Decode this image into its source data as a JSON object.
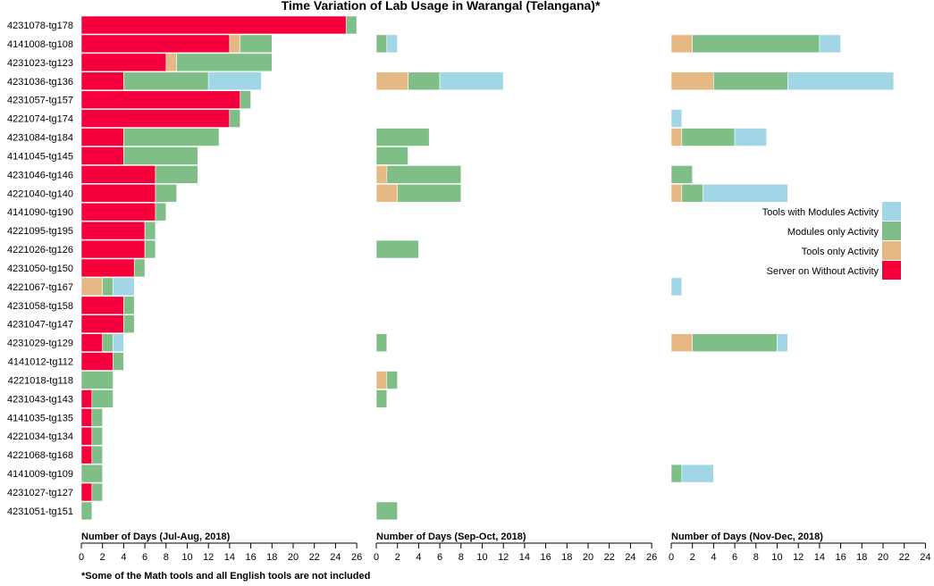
{
  "chart_data": {
    "type": "bar",
    "orientation": "horizontal",
    "stacked": true,
    "title": "Time Variation of Lab Usage in Warangal (Telangana)*",
    "footnote": "*Some of the Math tools and all English tools are not included",
    "categories": [
      "4231078-tg178",
      "4141008-tg108",
      "4231023-tg123",
      "4231036-tg136",
      "4231057-tg157",
      "4221074-tg174",
      "4231084-tg184",
      "4141045-tg145",
      "4231046-tg146",
      "4221040-tg140",
      "4141090-tg190",
      "4221095-tg195",
      "4221026-tg126",
      "4231050-tg150",
      "4221067-tg167",
      "4231058-tg158",
      "4231047-tg147",
      "4231029-tg129",
      "4141012-tg112",
      "4221018-tg118",
      "4231043-tg143",
      "4141035-tg135",
      "4221034-tg134",
      "4221068-tg168",
      "4141009-tg109",
      "4231027-tg127",
      "4231051-tg151"
    ],
    "series_names": [
      "Server on Without Activity",
      "Tools only Activity",
      "Modules only Activity",
      "Tools with Modules Activity"
    ],
    "colors": {
      "Server on Without Activity": "#f5003c",
      "Tools only Activity": "#e6b883",
      "Modules only Activity": "#7fbf87",
      "Tools with Modules Activity": "#a1d6e6"
    },
    "legend_labels": [
      "Tools with Modules Activity",
      "Modules only Activity",
      "Tools only Activity",
      "Server on Without Activity"
    ],
    "legend_position": "right",
    "grid": false,
    "panels": [
      {
        "xlabel": "Number of Days (Jul-Aug, 2018)",
        "xlim": [
          0,
          26
        ],
        "ticks": [
          0,
          2,
          4,
          6,
          8,
          10,
          12,
          14,
          16,
          18,
          20,
          22,
          24,
          26
        ],
        "values": [
          [
            25,
            0,
            1,
            0
          ],
          [
            14,
            1,
            3,
            0
          ],
          [
            8,
            1,
            9,
            0
          ],
          [
            4,
            0,
            8,
            5
          ],
          [
            15,
            0,
            1,
            0
          ],
          [
            14,
            0,
            1,
            0
          ],
          [
            4,
            0,
            9,
            0
          ],
          [
            4,
            0,
            7,
            0
          ],
          [
            7,
            0,
            4,
            0
          ],
          [
            7,
            0,
            2,
            0
          ],
          [
            7,
            0,
            1,
            0
          ],
          [
            6,
            0,
            1,
            0
          ],
          [
            6,
            0,
            1,
            0
          ],
          [
            5,
            0,
            1,
            0
          ],
          [
            0,
            2,
            1,
            2
          ],
          [
            4,
            0,
            1,
            0
          ],
          [
            4,
            0,
            1,
            0
          ],
          [
            2,
            0,
            1,
            1
          ],
          [
            3,
            0,
            1,
            0
          ],
          [
            0,
            0,
            3,
            0
          ],
          [
            1,
            0,
            2,
            0
          ],
          [
            1,
            0,
            1,
            0
          ],
          [
            1,
            0,
            1,
            0
          ],
          [
            1,
            0,
            1,
            0
          ],
          [
            0,
            0,
            2,
            0
          ],
          [
            1,
            0,
            1,
            0
          ],
          [
            0,
            0,
            1,
            0
          ]
        ]
      },
      {
        "xlabel": "Number of Days (Sep-Oct, 2018)",
        "xlim": [
          0,
          26
        ],
        "ticks": [
          0,
          2,
          4,
          6,
          8,
          10,
          12,
          14,
          16,
          18,
          20,
          22,
          24,
          26
        ],
        "values": [
          [
            0,
            0,
            0,
            0
          ],
          [
            0,
            0,
            1,
            1
          ],
          [
            0,
            0,
            0,
            0
          ],
          [
            0,
            3,
            3,
            6
          ],
          [
            0,
            0,
            0,
            0
          ],
          [
            0,
            0,
            0,
            0
          ],
          [
            0,
            0,
            5,
            0
          ],
          [
            0,
            0,
            3,
            0
          ],
          [
            0,
            1,
            7,
            0
          ],
          [
            0,
            2,
            6,
            0
          ],
          [
            0,
            0,
            0,
            0
          ],
          [
            0,
            0,
            0,
            0
          ],
          [
            0,
            0,
            4,
            0
          ],
          [
            0,
            0,
            0,
            0
          ],
          [
            0,
            0,
            0,
            0
          ],
          [
            0,
            0,
            0,
            0
          ],
          [
            0,
            0,
            0,
            0
          ],
          [
            0,
            0,
            1,
            0
          ],
          [
            0,
            0,
            0,
            0
          ],
          [
            0,
            1,
            1,
            0
          ],
          [
            0,
            0,
            1,
            0
          ],
          [
            0,
            0,
            0,
            0
          ],
          [
            0,
            0,
            0,
            0
          ],
          [
            0,
            0,
            0,
            0
          ],
          [
            0,
            0,
            0,
            0
          ],
          [
            0,
            0,
            0,
            0
          ],
          [
            0,
            0,
            2,
            0
          ]
        ]
      },
      {
        "xlabel": "Number of Days (Nov-Dec, 2018)",
        "xlim": [
          0,
          24
        ],
        "ticks": [
          0,
          2,
          4,
          6,
          8,
          10,
          12,
          14,
          16,
          18,
          20,
          22,
          24
        ],
        "values": [
          [
            0,
            0,
            0,
            0
          ],
          [
            0,
            2,
            12,
            2
          ],
          [
            0,
            0,
            0,
            0
          ],
          [
            0,
            4,
            7,
            10
          ],
          [
            0,
            0,
            0,
            0
          ],
          [
            0,
            0,
            0,
            1
          ],
          [
            0,
            1,
            5,
            3
          ],
          [
            0,
            0,
            0,
            0
          ],
          [
            0,
            0,
            2,
            0
          ],
          [
            0,
            1,
            2,
            8
          ],
          [
            0,
            0,
            0,
            0
          ],
          [
            0,
            0,
            0,
            0
          ],
          [
            0,
            0,
            0,
            0
          ],
          [
            0,
            0,
            0,
            0
          ],
          [
            0,
            0,
            0,
            1
          ],
          [
            0,
            0,
            0,
            0
          ],
          [
            0,
            0,
            0,
            0
          ],
          [
            0,
            2,
            8,
            1
          ],
          [
            0,
            0,
            0,
            0
          ],
          [
            0,
            0,
            0,
            0
          ],
          [
            0,
            0,
            0,
            0
          ],
          [
            0,
            0,
            0,
            0
          ],
          [
            0,
            0,
            0,
            0
          ],
          [
            0,
            0,
            0,
            0
          ],
          [
            0,
            0,
            1,
            3
          ],
          [
            0,
            0,
            0,
            0
          ],
          [
            0,
            0,
            0,
            0
          ]
        ]
      }
    ]
  }
}
